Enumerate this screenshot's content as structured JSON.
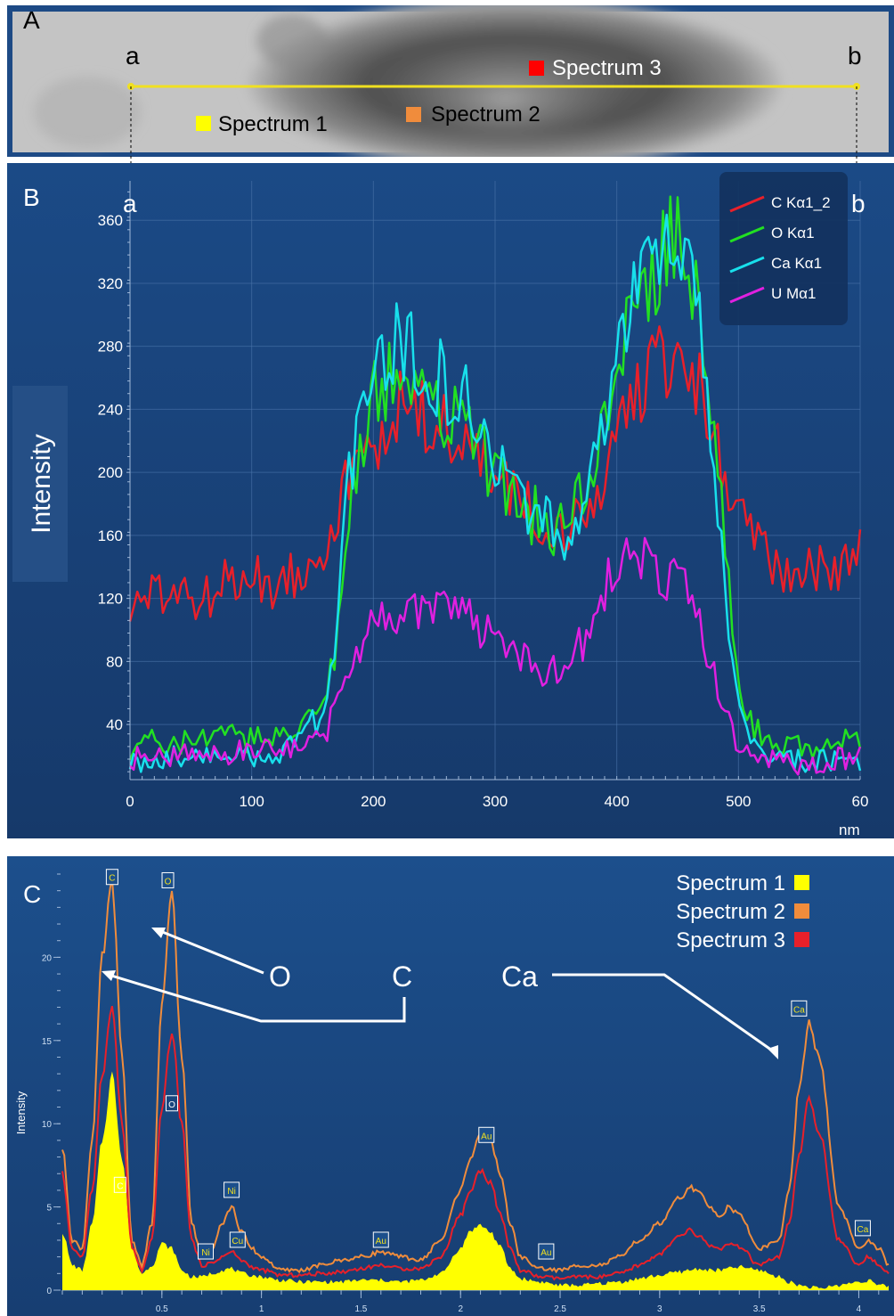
{
  "panel_a": {
    "label": "A",
    "endpoint_a": "a",
    "endpoint_b": "b",
    "markers": [
      {
        "label": "Spectrum 1",
        "color": "#ffff00"
      },
      {
        "label": "Spectrum 2",
        "color": "#f08c3c"
      },
      {
        "label": "Spectrum 3",
        "color": "#ff0000"
      }
    ],
    "line_color": "#f0e020"
  },
  "panel_b": {
    "label": "B",
    "endpoint_a": "a",
    "endpoint_b": "b",
    "ylabel": "Intensity",
    "xunit": "nm",
    "x_ticks": [
      "0",
      "100",
      "200",
      "300",
      "400",
      "500",
      "60"
    ],
    "y_ticks": [
      "40",
      "80",
      "120",
      "160",
      "200",
      "240",
      "280",
      "320",
      "360"
    ],
    "legend": [
      "C Kα1_2",
      "O Kα1",
      "Ca Kα1",
      "U Mα1"
    ]
  },
  "panel_c": {
    "label": "C",
    "ylabel": "Intensity",
    "x_ticks": [
      "0.5",
      "1",
      "1.5",
      "2",
      "2.5",
      "3",
      "3.5",
      "4"
    ],
    "y_ticks": [
      "0",
      "5",
      "10",
      "15",
      "20"
    ],
    "legend": [
      "Spectrum 1",
      "Spectrum 2",
      "Spectrum 3"
    ],
    "callouts": [
      "O",
      "C",
      "Ca"
    ],
    "peak_tags": [
      "C",
      "O",
      "O",
      "C",
      "Ni",
      "Ni",
      "Cu",
      "Au",
      "Au",
      "Au",
      "Ca",
      "Ca"
    ]
  },
  "chart_data": [
    {
      "type": "line",
      "panel": "B",
      "xlabel": "nm",
      "ylabel": "Intensity",
      "xlim": [
        0,
        600
      ],
      "ylim": [
        5,
        385
      ],
      "grid": true,
      "legend_position": "top-right",
      "x": [
        0,
        20,
        40,
        60,
        80,
        100,
        120,
        140,
        160,
        170,
        180,
        190,
        200,
        210,
        220,
        240,
        260,
        280,
        300,
        320,
        340,
        360,
        380,
        390,
        400,
        420,
        440,
        450,
        460,
        470,
        480,
        490,
        500,
        510,
        520,
        540,
        560,
        580,
        600
      ],
      "series": [
        {
          "name": "C Kα1_2",
          "color": "#e8202a",
          "values": [
            115,
            120,
            125,
            118,
            130,
            135,
            128,
            140,
            155,
            175,
            195,
            205,
            215,
            230,
            240,
            235,
            225,
            215,
            195,
            180,
            170,
            160,
            175,
            200,
            225,
            255,
            270,
            275,
            265,
            250,
            220,
            190,
            170,
            160,
            150,
            140,
            135,
            140,
            150
          ]
        },
        {
          "name": "O Kα1",
          "color": "#22e022",
          "values": [
            25,
            30,
            28,
            30,
            32,
            30,
            35,
            40,
            55,
            90,
            170,
            220,
            245,
            255,
            260,
            250,
            240,
            225,
            200,
            175,
            170,
            160,
            210,
            240,
            270,
            310,
            340,
            345,
            330,
            290,
            230,
            140,
            60,
            40,
            32,
            28,
            25,
            28,
            30
          ]
        },
        {
          "name": "Ca Kα1",
          "color": "#18e0ec",
          "values": [
            15,
            18,
            20,
            18,
            20,
            18,
            22,
            30,
            50,
            100,
            200,
            240,
            260,
            270,
            280,
            270,
            255,
            240,
            205,
            180,
            170,
            155,
            200,
            230,
            270,
            320,
            340,
            345,
            325,
            280,
            210,
            120,
            50,
            30,
            20,
            18,
            16,
            18,
            18
          ]
        },
        {
          "name": "U Mα1",
          "color": "#e020e0",
          "values": [
            18,
            20,
            22,
            20,
            22,
            25,
            22,
            25,
            35,
            50,
            65,
            90,
            110,
            115,
            110,
            112,
            115,
            110,
            90,
            80,
            75,
            80,
            100,
            125,
            150,
            145,
            135,
            130,
            120,
            100,
            70,
            45,
            25,
            20,
            18,
            15,
            15,
            18,
            20
          ]
        }
      ]
    },
    {
      "type": "area",
      "panel": "C",
      "ylabel": "Intensity",
      "xlim": [
        0,
        4.15
      ],
      "ylim": [
        0,
        25
      ],
      "legend_position": "top-right",
      "x": [
        0,
        0.05,
        0.1,
        0.15,
        0.2,
        0.25,
        0.3,
        0.35,
        0.4,
        0.45,
        0.5,
        0.55,
        0.6,
        0.65,
        0.7,
        0.75,
        0.8,
        0.85,
        0.9,
        0.95,
        1.0,
        1.1,
        1.2,
        1.3,
        1.4,
        1.5,
        1.6,
        1.7,
        1.8,
        1.9,
        2.0,
        2.05,
        2.1,
        2.15,
        2.2,
        2.25,
        2.3,
        2.4,
        2.5,
        2.6,
        2.7,
        2.8,
        2.9,
        3.0,
        3.1,
        3.15,
        3.2,
        3.25,
        3.3,
        3.35,
        3.4,
        3.5,
        3.6,
        3.65,
        3.7,
        3.75,
        3.8,
        3.9,
        4.0,
        4.05,
        4.1,
        4.15
      ],
      "series": [
        {
          "name": "Spectrum 1",
          "color": "#ffff00",
          "values": [
            3.5,
            1.5,
            1.2,
            4,
            9,
            13,
            8,
            2.5,
            1,
            1.5,
            2.8,
            2.5,
            1.2,
            0.8,
            0.8,
            1,
            1.2,
            1.3,
            1,
            0.9,
            0.8,
            0.6,
            0.5,
            0.5,
            0.5,
            0.6,
            0.6,
            0.5,
            0.6,
            1,
            2.5,
            3.6,
            3.9,
            3.5,
            2.6,
            1.3,
            0.7,
            0.5,
            0.3,
            0.3,
            0.4,
            0.5,
            0.7,
            0.9,
            1.1,
            1.2,
            1.3,
            1.2,
            1.2,
            1.3,
            1.4,
            1.2,
            0.8,
            0.5,
            0.3,
            0.2,
            0.1,
            0.3,
            0.5,
            0.6,
            0.3,
            0.2
          ]
        },
        {
          "name": "Spectrum 2",
          "color": "#f08c3c",
          "values": [
            8.5,
            3,
            2.5,
            9,
            20,
            24.5,
            14,
            3,
            1.5,
            4,
            17,
            24,
            14,
            4,
            2,
            2.5,
            4,
            5,
            3.5,
            2.5,
            2,
            1.2,
            1.2,
            1.5,
            1.8,
            2,
            2.3,
            2,
            1.8,
            3,
            6,
            8,
            9.5,
            9,
            7,
            4,
            2,
            1.3,
            1.2,
            1.5,
            1.5,
            2,
            3,
            4,
            5.5,
            6.2,
            5.8,
            5,
            4.5,
            5,
            4.5,
            2.5,
            3,
            6,
            12,
            16,
            14,
            5,
            2.5,
            3,
            2.5,
            1.5
          ]
        },
        {
          "name": "Spectrum 3",
          "color": "#e8202a",
          "values": [
            7,
            2.5,
            2,
            6,
            13,
            17,
            10,
            2.5,
            1.2,
            3,
            11,
            15.5,
            10,
            3,
            1.5,
            1.6,
            2,
            2.3,
            1.8,
            1.4,
            1.2,
            0.9,
            0.9,
            1,
            1.1,
            1.3,
            1.5,
            1.3,
            1.3,
            2,
            4.5,
            6,
            7.2,
            6.5,
            4.5,
            2.5,
            1.2,
            0.8,
            0.7,
            0.8,
            0.8,
            1,
            1.5,
            2.2,
            3.2,
            3.6,
            3.2,
            2.7,
            2.5,
            2.7,
            2.6,
            1.5,
            2,
            4,
            8,
            11.5,
            9.5,
            3,
            1.5,
            2,
            1.6,
            1
          ]
        }
      ]
    }
  ]
}
